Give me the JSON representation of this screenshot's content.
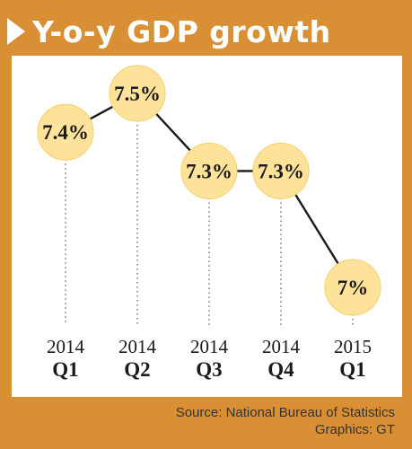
{
  "title": "Y-o-y GDP growth",
  "source": "Source: National Bureau of Statistics",
  "credit": "Graphics: GT",
  "colors": {
    "frame": "#d98f33",
    "bubble": "#fde39a",
    "bubble_stroke": "#f5cf6a",
    "line": "#1a1a1a"
  },
  "chart_data": {
    "type": "line",
    "title": "Y-o-y GDP growth",
    "unit": "%",
    "categories": [
      {
        "year": "2014",
        "quarter": "Q1"
      },
      {
        "year": "2014",
        "quarter": "Q2"
      },
      {
        "year": "2014",
        "quarter": "Q3"
      },
      {
        "year": "2014",
        "quarter": "Q4"
      },
      {
        "year": "2015",
        "quarter": "Q1"
      }
    ],
    "values": [
      7.4,
      7.5,
      7.3,
      7.3,
      7.0
    ],
    "data_labels": [
      "7.4%",
      "7.5%",
      "7.3%",
      "7.3%",
      "7%"
    ],
    "grid": false,
    "legend": "none"
  }
}
